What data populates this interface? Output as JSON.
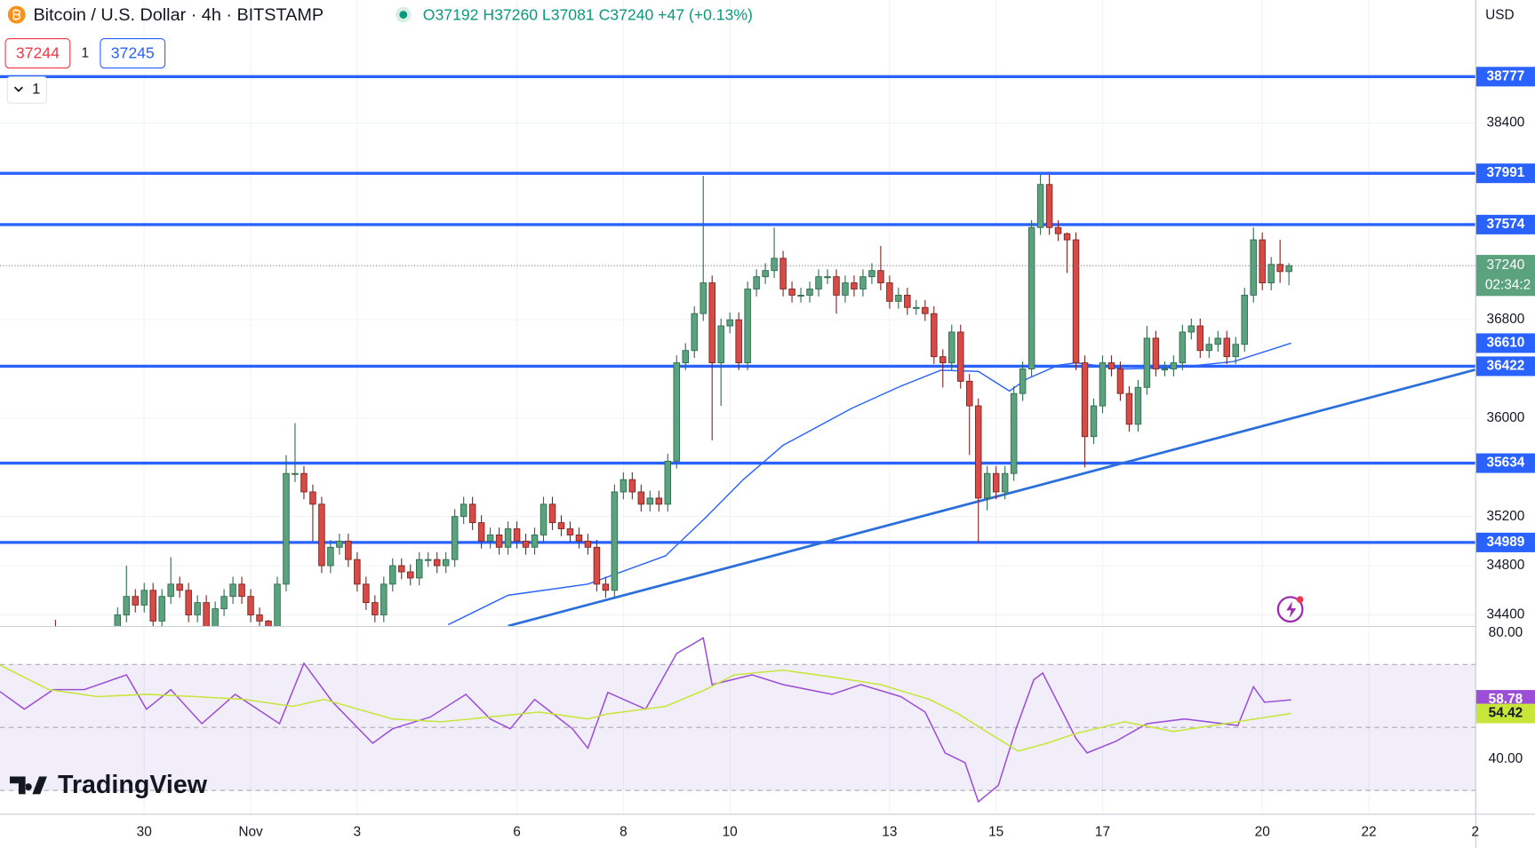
{
  "header": {
    "title": "Bitcoin / U.S. Dollar · 4h · BITSTAMP",
    "ohlc": "O37192 H37260 L37081 C37240 +47 (+0.13%)",
    "bid": "37244",
    "spread": "1",
    "ask": "37245",
    "interval": "1",
    "currency": "USD",
    "watermark": "TradingView"
  },
  "chart_data": {
    "type": "candlestick",
    "grid": true,
    "up_color": "#5ba27f",
    "down_color": "#d84a45",
    "xlim": [
      -65,
      600
    ],
    "xticks": [
      {
        "value": 0,
        "label": "30"
      },
      {
        "value": 48,
        "label": "Nov"
      },
      {
        "value": 96,
        "label": "3"
      },
      {
        "value": 168,
        "label": "6"
      },
      {
        "value": 216,
        "label": "8"
      },
      {
        "value": 264,
        "label": "10"
      },
      {
        "value": 336,
        "label": "13"
      },
      {
        "value": 384,
        "label": "15"
      },
      {
        "value": 432,
        "label": "17"
      },
      {
        "value": 504,
        "label": "20"
      },
      {
        "value": 552,
        "label": "22"
      },
      {
        "value": 600,
        "label": "2"
      }
    ],
    "ylim": [
      34310,
      39400
    ],
    "yticks": [
      34400,
      34800,
      35200,
      36000,
      36800,
      38400
    ],
    "x": [
      -40,
      -36,
      -32,
      -28,
      -24,
      -20,
      -16,
      -12,
      -8,
      -4,
      0,
      4,
      8,
      12,
      16,
      20,
      24,
      28,
      32,
      36,
      40,
      44,
      48,
      52,
      56,
      60,
      64,
      68,
      72,
      76,
      80,
      84,
      88,
      92,
      96,
      100,
      104,
      108,
      112,
      116,
      120,
      124,
      128,
      132,
      136,
      140,
      144,
      148,
      152,
      156,
      160,
      164,
      168,
      172,
      176,
      180,
      184,
      188,
      192,
      196,
      200,
      204,
      208,
      212,
      216,
      220,
      224,
      228,
      232,
      236,
      240,
      244,
      248,
      252,
      256,
      260,
      264,
      268,
      272,
      276,
      280,
      284,
      288,
      292,
      296,
      300,
      304,
      308,
      312,
      316,
      320,
      324,
      328,
      332,
      336,
      340,
      344,
      348,
      352,
      356,
      360,
      364,
      368,
      372,
      376,
      380,
      384,
      388,
      392,
      396,
      400,
      404,
      408,
      412,
      416,
      420,
      424,
      428,
      432,
      436,
      440,
      444,
      448,
      452,
      456,
      460,
      464,
      468,
      472,
      476,
      480,
      484,
      488,
      492,
      496,
      500,
      504,
      508,
      512,
      516
    ],
    "open": [
      34300,
      34250,
      34200,
      34180,
      34150,
      34200,
      34220,
      34250,
      34400,
      34550,
      34480,
      34600,
      34350,
      34550,
      34650,
      34600,
      34400,
      34500,
      34300,
      34450,
      34550,
      34650,
      34550,
      34400,
      34350,
      34300,
      34650,
      35550,
      35550,
      35400,
      35300,
      34800,
      34950,
      35000,
      34850,
      34650,
      34500,
      34400,
      34650,
      34800,
      34750,
      34700,
      34850,
      34850,
      34800,
      34850,
      35200,
      35300,
      35150,
      35000,
      35050,
      34950,
      35100,
      35000,
      34950,
      35050,
      35300,
      35150,
      35100,
      35050,
      35000,
      34950,
      34650,
      34600,
      35400,
      35500,
      35400,
      35300,
      35350,
      35300,
      35650,
      36450,
      36550,
      36850,
      37100,
      36450,
      36750,
      36800,
      36450,
      37050,
      37150,
      37200,
      37300,
      37050,
      37000,
      37000,
      37050,
      37150,
      37150,
      37000,
      37100,
      37050,
      37150,
      37200,
      37100,
      36950,
      37000,
      36900,
      36900,
      36850,
      36500,
      36450,
      36700,
      36300,
      36100,
      35350,
      35550,
      35400,
      35550,
      36200,
      36400,
      37550,
      37900,
      37550,
      37500,
      37450,
      36450,
      35850,
      36100,
      36450,
      36400,
      36200,
      35950,
      36250,
      36650,
      36400,
      36400,
      36450,
      36700,
      36750,
      36550,
      36600,
      36650,
      36500,
      36600,
      37000,
      37450,
      37100,
      37250,
      37192
    ],
    "high": [
      34360,
      34310,
      34260,
      34240,
      34260,
      34280,
      34310,
      34460,
      34800,
      34610,
      34660,
      34660,
      34610,
      34870,
      34710,
      34660,
      34560,
      34560,
      34510,
      34610,
      34710,
      34710,
      34610,
      34460,
      34360,
      34710,
      35700,
      35960,
      35610,
      35460,
      35360,
      35010,
      35060,
      35060,
      34910,
      34710,
      34560,
      34710,
      34860,
      34860,
      34810,
      34910,
      34910,
      34910,
      34910,
      35260,
      35360,
      35360,
      35210,
      35110,
      35110,
      35160,
      35160,
      35060,
      35110,
      35360,
      35360,
      35210,
      35160,
      35110,
      35060,
      35010,
      34710,
      35460,
      35560,
      35560,
      35460,
      35410,
      35410,
      35710,
      36510,
      36610,
      36910,
      37970,
      37160,
      36810,
      36860,
      36860,
      37110,
      37210,
      37260,
      37550,
      37360,
      37110,
      37060,
      37110,
      37210,
      37210,
      37210,
      37160,
      37160,
      37210,
      37260,
      37400,
      37160,
      37060,
      37060,
      36960,
      36960,
      36910,
      36560,
      36760,
      36760,
      36360,
      36160,
      35610,
      35610,
      35610,
      36260,
      36460,
      37610,
      37980,
      37980,
      37610,
      37510,
      37510,
      36510,
      36160,
      36510,
      36510,
      36460,
      36260,
      36310,
      36750,
      36710,
      36460,
      36510,
      36760,
      36810,
      36810,
      36660,
      36710,
      36710,
      36660,
      37060,
      37550,
      37510,
      37310,
      37450,
      37260
    ],
    "low": [
      34190,
      34140,
      34120,
      34090,
      34090,
      34140,
      34160,
      34190,
      34340,
      34420,
      34420,
      34290,
      34290,
      34490,
      34540,
      34340,
      34340,
      34240,
      34240,
      34390,
      34490,
      34490,
      34340,
      34290,
      34240,
      34240,
      34590,
      35480,
      35340,
      35000,
      34740,
      34740,
      34890,
      34790,
      34590,
      34440,
      34340,
      34340,
      34590,
      34690,
      34640,
      34640,
      34790,
      34740,
      34740,
      34790,
      35140,
      35090,
      34940,
      34940,
      34890,
      34890,
      34940,
      34890,
      34890,
      34990,
      35090,
      35040,
      34990,
      34940,
      34890,
      34590,
      34540,
      34540,
      35340,
      35340,
      35240,
      35240,
      35240,
      35240,
      35590,
      36390,
      36490,
      36790,
      35820,
      36100,
      36690,
      36390,
      36390,
      36990,
      37090,
      37140,
      36990,
      36940,
      36940,
      36940,
      36990,
      37090,
      36850,
      36940,
      36990,
      36990,
      37090,
      37040,
      36890,
      36890,
      36840,
      36840,
      36790,
      36440,
      36250,
      36390,
      36240,
      35700,
      34990,
      35250,
      35340,
      35340,
      35490,
      36140,
      36340,
      37490,
      37490,
      37440,
      37180,
      36390,
      35600,
      35790,
      36040,
      36340,
      36140,
      35890,
      35890,
      36190,
      36340,
      36340,
      36340,
      36390,
      36640,
      36490,
      36490,
      36540,
      36440,
      36440,
      36540,
      36940,
      37040,
      37040,
      37100,
      37081
    ],
    "close": [
      34250,
      34200,
      34180,
      34150,
      34200,
      34220,
      34250,
      34400,
      34550,
      34480,
      34600,
      34350,
      34550,
      34650,
      34600,
      34400,
      34500,
      34300,
      34450,
      34550,
      34650,
      34550,
      34400,
      34350,
      34300,
      34650,
      35550,
      35550,
      35400,
      35300,
      34800,
      34950,
      35000,
      34850,
      34650,
      34500,
      34400,
      34650,
      34800,
      34750,
      34700,
      34850,
      34850,
      34800,
      34850,
      35200,
      35300,
      35150,
      35000,
      35050,
      34950,
      35100,
      35000,
      34950,
      35050,
      35300,
      35150,
      35100,
      35050,
      35000,
      34950,
      34650,
      34600,
      35400,
      35500,
      35400,
      35300,
      35350,
      35300,
      35650,
      36450,
      36550,
      36850,
      37100,
      36450,
      36750,
      36800,
      36450,
      37050,
      37150,
      37200,
      37300,
      37050,
      37000,
      37000,
      37050,
      37150,
      37150,
      37000,
      37100,
      37050,
      37150,
      37200,
      37100,
      36950,
      37000,
      36900,
      36900,
      36850,
      36500,
      36450,
      36700,
      36300,
      36100,
      35350,
      35550,
      35400,
      35550,
      36200,
      36400,
      37550,
      37900,
      37550,
      37500,
      37450,
      36450,
      35850,
      36100,
      36450,
      36400,
      36200,
      35950,
      36250,
      36650,
      36400,
      36400,
      36450,
      36700,
      36750,
      36550,
      36600,
      36650,
      36500,
      36600,
      37000,
      37450,
      37100,
      37250,
      37192,
      37240
    ],
    "countdown": "02:34:2",
    "last_price_color": "#5ba27f",
    "moving_average": {
      "color": "#2962ff",
      "x": [
        137,
        164,
        200,
        235,
        253,
        270,
        288,
        319,
        341,
        359,
        376,
        390,
        398,
        412,
        420,
        442,
        464,
        491,
        517
      ],
      "values": [
        34320,
        34560,
        34650,
        34880,
        35190,
        35500,
        35780,
        36080,
        36260,
        36390,
        36380,
        36220,
        36320,
        36430,
        36450,
        36400,
        36410,
        36460,
        36610
      ]
    },
    "hlines": {
      "color": "#2962ff",
      "values": [
        38777,
        37991,
        37574,
        36422,
        35634,
        34989
      ]
    },
    "trendline": {
      "color": "#2a6fdb",
      "x": [
        164,
        600
      ],
      "values": [
        34310,
        36394
      ]
    },
    "rsi": {
      "ylim": [
        22.6,
        81.6
      ],
      "yticks": [
        {
          "value": 40,
          "label": "40.00"
        },
        {
          "value": 80,
          "label": "80.00"
        }
      ],
      "bands": [
        70,
        50,
        30
      ],
      "band_color": "#7e57c2",
      "series": [
        {
          "color": "#9c4fd6",
          "x": [
            -65,
            -54,
            -41,
            -27,
            -8,
            1,
            12,
            26,
            41,
            61,
            72,
            85,
            103,
            112,
            129,
            145,
            156,
            165,
            176,
            193,
            200,
            209,
            226,
            240,
            252,
            256,
            274,
            288,
            310,
            323,
            341,
            352,
            361,
            370,
            376,
            385,
            393,
            401,
            405,
            420,
            425,
            438,
            452,
            469,
            493,
            500,
            505,
            517
          ],
          "values": [
            61.4,
            55.8,
            62,
            62,
            66.7,
            55.8,
            62,
            51.2,
            60.5,
            51.2,
            70.4,
            58,
            45,
            49.6,
            53.3,
            60.5,
            52.7,
            49.6,
            58.9,
            49.6,
            43.4,
            61.1,
            55.8,
            73.5,
            78.4,
            63.6,
            66.7,
            63.6,
            60.5,
            63.6,
            59.8,
            54.9,
            41.9,
            38.8,
            26.4,
            31.6,
            49.6,
            65.1,
            67.3,
            46.5,
            41.9,
            45.6,
            51.2,
            52.7,
            50.6,
            62.9,
            58,
            58.78
          ],
          "value_labels": {
            "47": "58.78"
          }
        },
        {
          "color": "#c6e63a",
          "x": [
            -65,
            -43,
            -21,
            1,
            23,
            45,
            67,
            81,
            112,
            134,
            178,
            200,
            209,
            235,
            253,
            266,
            288,
            310,
            332,
            354,
            367,
            381,
            394,
            407,
            420,
            442,
            464,
            487,
            517
          ],
          "values": [
            69.8,
            62,
            59.8,
            60.5,
            59.8,
            58.9,
            56.7,
            58.9,
            52.7,
            51.8,
            54.9,
            52.7,
            54.3,
            56.7,
            62,
            66.7,
            68.2,
            66,
            63.6,
            58.9,
            54.3,
            48.1,
            42.5,
            45,
            48.1,
            51.8,
            48.7,
            51.2,
            54.42
          ]
        }
      ]
    }
  }
}
